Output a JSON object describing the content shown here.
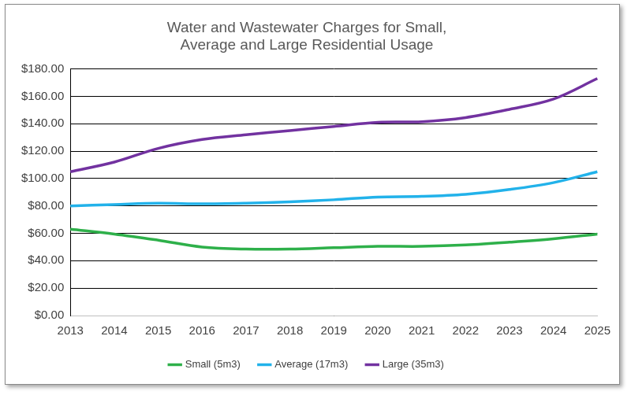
{
  "chart_data": {
    "type": "line",
    "title": "Water and Wastewater Charges for Small, Average and Large Residential Usage",
    "categories": [
      "2013",
      "2014",
      "2015",
      "2016",
      "2017",
      "2018",
      "2019",
      "2020",
      "2021",
      "2022",
      "2023",
      "2024",
      "2025"
    ],
    "series": [
      {
        "name": "Small (5m3)",
        "color": "#2eb04a",
        "values": [
          63,
          59.5,
          55,
          50,
          48.5,
          48.5,
          49.5,
          50.5,
          50.5,
          51.5,
          53.5,
          56,
          59.5
        ]
      },
      {
        "name": "Average (17m3)",
        "color": "#22b2ea",
        "values": [
          80,
          81,
          82,
          81.5,
          82,
          83,
          84.5,
          86.5,
          87,
          88.5,
          92,
          97,
          105
        ]
      },
      {
        "name": "Large (35m3)",
        "color": "#7232a0",
        "values": [
          105,
          112,
          122,
          128.5,
          132,
          135,
          138,
          141,
          141.5,
          144.5,
          150.5,
          158,
          173
        ]
      }
    ],
    "ylim": [
      0,
      180
    ],
    "yticks": [
      {
        "value": 0,
        "label": "$0.00"
      },
      {
        "value": 20,
        "label": "$20.00"
      },
      {
        "value": 40,
        "label": "$40.00"
      },
      {
        "value": 60,
        "label": "$60.00"
      },
      {
        "value": 80,
        "label": "$80.00"
      },
      {
        "value": 100,
        "label": "$100.00"
      },
      {
        "value": 120,
        "label": "$120.00"
      },
      {
        "value": 140,
        "label": "$140.00"
      },
      {
        "value": 160,
        "label": "$160.00"
      },
      {
        "value": 180,
        "label": "$180.00"
      }
    ],
    "grid": true,
    "legend": "bottom"
  }
}
